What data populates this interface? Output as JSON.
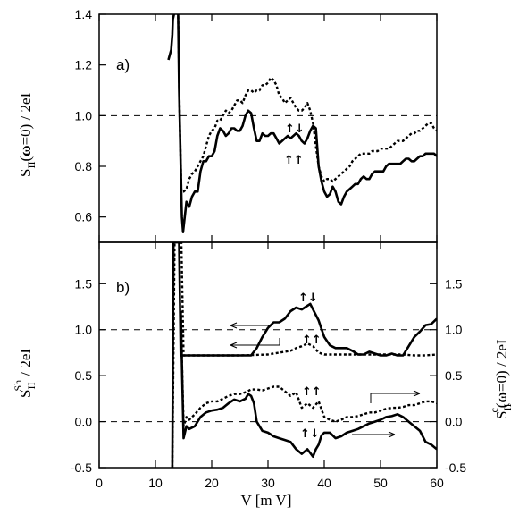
{
  "figure": {
    "x_axis_label": "V [m V]",
    "x_ticks": [
      "0",
      "10",
      "20",
      "30",
      "40",
      "50",
      "60"
    ],
    "panel_a": {
      "panel_label": "a)",
      "y_axis_label": "S_II(ω=0) / 2eI",
      "y_ticks": [
        "0.6",
        "0.8",
        "1.0",
        "1.2",
        "1.4"
      ],
      "annotations": [
        "↑↑",
        "↑↓"
      ]
    },
    "panel_b": {
      "panel_label": "b)",
      "y_axis_label_left": "S_II^Sh / 2eI",
      "y_axis_label_right": "S_II^c(ω=0) / 2eI",
      "y_ticks_left": [
        "-0.5",
        "0.0",
        "0.5",
        "1.0",
        "1.5"
      ],
      "y_ticks_right": [
        "-0.5",
        "0.0",
        "0.5",
        "1.0",
        "1.5"
      ],
      "annotations": [
        "↑↓",
        "↑↑",
        "↑↑",
        "↑↓"
      ]
    }
  },
  "chart_data": [
    {
      "type": "line",
      "panel": "a",
      "title": "",
      "xlabel": "V [m V]",
      "ylabel": "S_II(ω=0) / 2eI",
      "xlim": [
        0,
        60
      ],
      "ylim": [
        0.5,
        1.4
      ],
      "reference_line": 1.0,
      "series": [
        {
          "style": "solid",
          "x": [
            12.3,
            12.8,
            13.0,
            13.1,
            13.8,
            14.0,
            14.2,
            14.5,
            14.7,
            14.9,
            15.2,
            15.5,
            16.0,
            16.5,
            17.0,
            17.5,
            18.0,
            18.5,
            19.0,
            19.5,
            20.0,
            20.5,
            21.0,
            21.5,
            22.0,
            22.5,
            23.0,
            23.5,
            24.0,
            24.5,
            25.0,
            25.5,
            26.0,
            26.5,
            27.0,
            27.5,
            28.0,
            28.5,
            29.0,
            29.5,
            30.0,
            30.5,
            31.0,
            31.5,
            32.0,
            32.5,
            33.0,
            33.5,
            34.0,
            34.5,
            35.0,
            35.5,
            36.0,
            36.5,
            37.0,
            37.5,
            38.0,
            38.5,
            39.0,
            39.5,
            40.0,
            40.5,
            41.0,
            41.5,
            42.0,
            42.5,
            43.0,
            43.5,
            44.0,
            44.5,
            45.0,
            45.5,
            46.0,
            46.5,
            47.0,
            47.5,
            48.0,
            48.5,
            49.0,
            49.5,
            50.0,
            50.5,
            51.0,
            51.5,
            52.0,
            52.5,
            53.0,
            53.5,
            54.0,
            54.5,
            55.0,
            55.5,
            56.0,
            56.5,
            57.0,
            57.5,
            58.0,
            58.5,
            59.0,
            59.5,
            60.0
          ],
          "y": [
            1.22,
            1.26,
            1.32,
            1.38,
            1.45,
            1.45,
            1.1,
            0.8,
            0.6,
            0.54,
            0.6,
            0.66,
            0.64,
            0.68,
            0.7,
            0.7,
            0.78,
            0.82,
            0.82,
            0.84,
            0.84,
            0.86,
            0.92,
            0.95,
            0.94,
            0.92,
            0.93,
            0.95,
            0.95,
            0.94,
            0.94,
            0.96,
            1.0,
            1.02,
            1.01,
            0.95,
            0.9,
            0.9,
            0.93,
            0.92,
            0.92,
            0.93,
            0.93,
            0.91,
            0.89,
            0.9,
            0.91,
            0.92,
            0.91,
            0.92,
            0.93,
            0.92,
            0.9,
            0.89,
            0.91,
            0.94,
            0.96,
            0.95,
            0.8,
            0.74,
            0.7,
            0.68,
            0.69,
            0.72,
            0.7,
            0.66,
            0.65,
            0.68,
            0.7,
            0.71,
            0.72,
            0.73,
            0.73,
            0.75,
            0.76,
            0.75,
            0.75,
            0.77,
            0.78,
            0.78,
            0.78,
            0.78,
            0.8,
            0.81,
            0.81,
            0.81,
            0.81,
            0.81,
            0.82,
            0.83,
            0.83,
            0.82,
            0.82,
            0.83,
            0.84,
            0.84,
            0.85,
            0.85,
            0.85,
            0.85,
            0.84
          ]
        },
        {
          "style": "dotted",
          "x": [
            14.0,
            14.3,
            14.6,
            15.0,
            15.5,
            16.0,
            16.5,
            17.0,
            17.5,
            18.0,
            18.5,
            19.0,
            19.5,
            20.0,
            20.5,
            21.0,
            21.5,
            22.0,
            22.5,
            23.0,
            23.5,
            24.0,
            24.5,
            25.0,
            25.5,
            26.0,
            26.5,
            27.0,
            27.5,
            28.0,
            28.5,
            29.0,
            29.5,
            30.0,
            30.5,
            31.0,
            31.5,
            32.0,
            32.5,
            33.0,
            33.5,
            34.0,
            34.5,
            35.0,
            35.5,
            36.0,
            36.5,
            37.0,
            37.5,
            38.0,
            38.5,
            39.0,
            39.5,
            40.0,
            40.5,
            41.0,
            41.5,
            42.0,
            42.5,
            43.0,
            43.5,
            44.0,
            44.5,
            45.0,
            45.5,
            46.0,
            46.5,
            47.0,
            47.5,
            48.0,
            48.5,
            49.0,
            49.5,
            50.0,
            50.5,
            51.0,
            51.5,
            52.0,
            52.5,
            53.0,
            53.5,
            54.0,
            54.5,
            55.0,
            55.5,
            56.0,
            56.5,
            57.0,
            57.5,
            58.0,
            58.5,
            59.0,
            59.5,
            60.0
          ],
          "y": [
            1.45,
            1.0,
            0.7,
            0.7,
            0.71,
            0.75,
            0.77,
            0.78,
            0.8,
            0.82,
            0.84,
            0.88,
            0.92,
            0.94,
            0.95,
            0.98,
            0.98,
            1.0,
            1.02,
            1.01,
            1.02,
            1.04,
            1.06,
            1.06,
            1.05,
            1.08,
            1.1,
            1.1,
            1.09,
            1.1,
            1.1,
            1.12,
            1.12,
            1.13,
            1.15,
            1.14,
            1.12,
            1.08,
            1.07,
            1.05,
            1.06,
            1.07,
            1.05,
            1.03,
            1.02,
            1.02,
            1.03,
            1.05,
            1.02,
            0.97,
            0.88,
            0.8,
            0.76,
            0.74,
            0.75,
            0.75,
            0.74,
            0.75,
            0.76,
            0.77,
            0.78,
            0.79,
            0.8,
            0.82,
            0.83,
            0.84,
            0.85,
            0.85,
            0.85,
            0.85,
            0.86,
            0.86,
            0.86,
            0.87,
            0.87,
            0.87,
            0.87,
            0.88,
            0.89,
            0.9,
            0.9,
            0.9,
            0.91,
            0.92,
            0.93,
            0.93,
            0.94,
            0.94,
            0.95,
            0.96,
            0.97,
            0.97,
            0.95,
            0.94
          ]
        }
      ]
    },
    {
      "type": "line",
      "panel": "b",
      "title": "",
      "xlabel": "V [m V]",
      "ylabel": "S_II^Sh / 2eI",
      "ylabel_right": "S_II^c(ω=0) / 2eI",
      "xlim": [
        0,
        60
      ],
      "ylim": [
        -0.5,
        1.95
      ],
      "reference_lines": [
        0.0,
        1.0
      ],
      "series": [
        {
          "style": "solid",
          "x": [
            13.0,
            13.2,
            14.2,
            14.5,
            15.0,
            16.0,
            18.0,
            20.0,
            22.0,
            24.0,
            26.0,
            27.0,
            28.0,
            29.0,
            30.0,
            31.0,
            32.0,
            33.0,
            34.0,
            35.0,
            36.0,
            37.0,
            37.5,
            38.0,
            39.0,
            40.0,
            41.0,
            42.0,
            43.0,
            44.0,
            45.0,
            46.0,
            47.0,
            48.0,
            49.0,
            50.0,
            51.0,
            52.0,
            53.0,
            54.0,
            55.0,
            56.0,
            57.0,
            58.0,
            59.0,
            60.0
          ],
          "y": [
            -0.5,
            1.95,
            1.95,
            0.72,
            0.72,
            0.72,
            0.72,
            0.72,
            0.72,
            0.72,
            0.72,
            0.72,
            0.8,
            0.92,
            1.02,
            1.08,
            1.08,
            1.12,
            1.2,
            1.24,
            1.22,
            1.26,
            1.28,
            1.22,
            1.1,
            0.92,
            0.83,
            0.8,
            0.8,
            0.8,
            0.77,
            0.73,
            0.73,
            0.76,
            0.74,
            0.72,
            0.72,
            0.74,
            0.72,
            0.72,
            0.82,
            0.92,
            0.98,
            1.05,
            1.06,
            1.12
          ]
        },
        {
          "style": "dotted",
          "x": [
            13.0,
            13.4,
            14.6,
            15.0,
            16.0,
            20.0,
            25.0,
            30.0,
            32.0,
            33.0,
            34.0,
            35.0,
            36.0,
            37.0,
            38.0,
            39.0,
            40.0,
            42.0,
            44.0,
            46.0,
            48.0,
            50.0,
            52.0,
            54.0,
            56.0,
            58.0,
            60.0
          ],
          "y": [
            -0.5,
            1.95,
            1.95,
            0.72,
            0.72,
            0.72,
            0.72,
            0.73,
            0.75,
            0.76,
            0.77,
            0.8,
            0.82,
            0.85,
            0.82,
            0.75,
            0.73,
            0.73,
            0.73,
            0.73,
            0.73,
            0.73,
            0.73,
            0.73,
            0.72,
            0.72,
            0.73
          ]
        },
        {
          "style": "solid",
          "x": [
            14.5,
            15.0,
            15.5,
            16.0,
            17.0,
            18.0,
            19.0,
            20.0,
            21.0,
            22.0,
            23.0,
            24.0,
            25.0,
            26.0,
            26.5,
            27.0,
            27.5,
            28.0,
            29.0,
            30.0,
            31.0,
            32.0,
            33.0,
            34.0,
            35.0,
            36.0,
            37.0,
            38.0,
            38.5,
            39.0,
            39.5,
            40.0,
            41.0,
            42.0,
            43.0,
            44.0,
            45.0,
            46.0,
            47.0,
            48.0,
            49.0,
            50.0,
            51.0,
            52.0,
            53.0,
            54.0,
            55.0,
            56.0,
            57.0,
            58.0,
            59.0,
            60.0
          ],
          "y": [
            1.2,
            -0.18,
            -0.05,
            -0.08,
            -0.05,
            0.05,
            0.1,
            0.12,
            0.13,
            0.15,
            0.2,
            0.24,
            0.22,
            0.25,
            0.3,
            0.28,
            0.2,
            0.0,
            -0.1,
            -0.12,
            -0.16,
            -0.18,
            -0.2,
            -0.22,
            -0.3,
            -0.35,
            -0.3,
            -0.38,
            -0.3,
            -0.25,
            -0.15,
            -0.12,
            -0.12,
            -0.18,
            -0.16,
            -0.12,
            -0.1,
            -0.08,
            -0.05,
            -0.02,
            0.0,
            0.02,
            0.05,
            0.06,
            0.08,
            0.05,
            0.0,
            -0.05,
            -0.1,
            -0.22,
            -0.25,
            -0.3
          ]
        },
        {
          "style": "dotted",
          "x": [
            14.5,
            15.0,
            15.5,
            16.0,
            17.0,
            18.0,
            19.0,
            20.0,
            21.0,
            22.0,
            23.0,
            24.0,
            25.0,
            26.0,
            27.0,
            28.0,
            29.0,
            30.0,
            31.0,
            32.0,
            33.0,
            34.0,
            35.0,
            36.0,
            37.0,
            38.0,
            39.0,
            40.0,
            41.0,
            42.0,
            43.0,
            44.0,
            45.0,
            46.0,
            47.0,
            48.0,
            49.0,
            50.0,
            51.0,
            52.0,
            53.0,
            54.0,
            55.0,
            56.0,
            57.0,
            58.0,
            59.0,
            60.0
          ],
          "y": [
            1.2,
            -0.05,
            0.05,
            0.02,
            0.08,
            0.15,
            0.2,
            0.22,
            0.22,
            0.25,
            0.28,
            0.3,
            0.3,
            0.32,
            0.35,
            0.35,
            0.34,
            0.36,
            0.38,
            0.38,
            0.33,
            0.28,
            0.32,
            0.15,
            0.2,
            0.15,
            0.22,
            0.05,
            0.02,
            0.0,
            0.02,
            0.05,
            0.05,
            0.06,
            0.08,
            0.1,
            0.1,
            0.12,
            0.14,
            0.15,
            0.15,
            0.16,
            0.18,
            0.18,
            0.2,
            0.22,
            0.22,
            0.2
          ]
        }
      ]
    }
  ]
}
